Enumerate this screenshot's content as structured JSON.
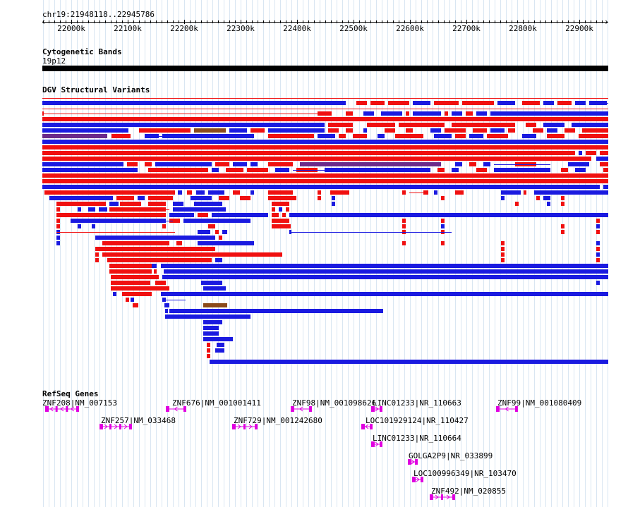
{
  "location": {
    "label": "chr19:21948118..22945786"
  },
  "ruler": {
    "ticks": [
      "22000k",
      "22100k",
      "22200k",
      "22300k",
      "22400k",
      "22500k",
      "22600k",
      "22700k",
      "22800k",
      "22900k"
    ]
  },
  "tracks": {
    "cytoband": {
      "title": "Cytogenetic Bands",
      "band": "19p12"
    },
    "dgv": {
      "title": "DGV Structural Variants"
    },
    "refseq": {
      "title": "RefSeq Genes"
    }
  },
  "genes": [
    {
      "label": "ZNF208|NM_007153"
    },
    {
      "label": "ZNF257|NM_033468"
    },
    {
      "label": "ZNF676|NM_001001411"
    },
    {
      "label": "ZNF729|NM_001242680"
    },
    {
      "label": "ZNF98|NM_001098626"
    },
    {
      "label": "LINC01233|NR_110663"
    },
    {
      "label": "LOC101929124|NR_110427"
    },
    {
      "label": "LINC01233|NR_110664"
    },
    {
      "label": "GOLGA2P9|NR_033899"
    },
    {
      "label": "LOC100996349|NR_103470"
    },
    {
      "label": "ZNF492|NM_020855"
    },
    {
      "label": "ZNF99|NM_001080409"
    }
  ],
  "colors": {
    "gain": "#f01010",
    "loss": "#1a1ae0",
    "complex": "#6b2a8a",
    "inversion": "#8b4a1a",
    "gene": "#e000e0",
    "grid": "#d9e6f2"
  }
}
